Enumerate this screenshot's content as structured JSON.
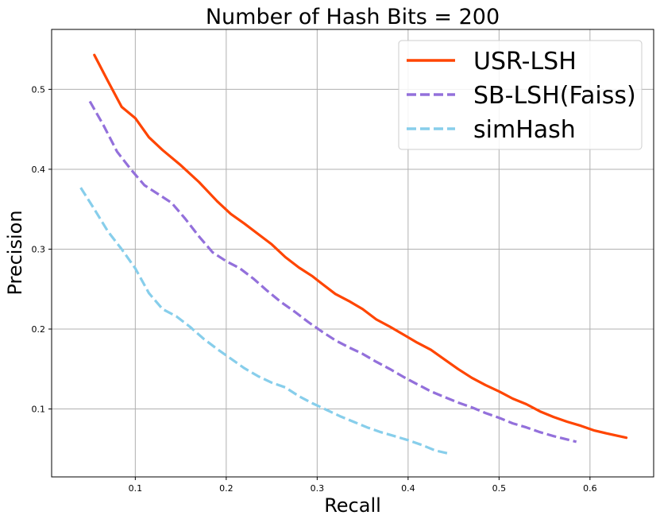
{
  "chart_data": {
    "type": "line",
    "title": "Number of Hash Bits = 200",
    "xlabel": "Recall",
    "ylabel": "Precision",
    "xlim": [
      0.008,
      0.67
    ],
    "ylim": [
      0.015,
      0.575
    ],
    "xticks": [
      0.1,
      0.2,
      0.3,
      0.4,
      0.5,
      0.6
    ],
    "xtick_labels": [
      "0.1",
      "0.2",
      "0.3",
      "0.4",
      "0.5",
      "0.6"
    ],
    "yticks": [
      0.1,
      0.2,
      0.3,
      0.4,
      0.5
    ],
    "ytick_labels": [
      "0.1",
      "0.2",
      "0.3",
      "0.4",
      "0.5"
    ],
    "grid": true,
    "legend_position": "top-right",
    "series": [
      {
        "name": "USR-LSH",
        "color": "#ff4500",
        "dash": "solid",
        "points": [
          [
            0.055,
            0.543
          ],
          [
            0.07,
            0.51
          ],
          [
            0.085,
            0.478
          ],
          [
            0.1,
            0.464
          ],
          [
            0.115,
            0.44
          ],
          [
            0.13,
            0.424
          ],
          [
            0.15,
            0.405
          ],
          [
            0.17,
            0.384
          ],
          [
            0.19,
            0.36
          ],
          [
            0.205,
            0.344
          ],
          [
            0.22,
            0.332
          ],
          [
            0.235,
            0.319
          ],
          [
            0.25,
            0.306
          ],
          [
            0.265,
            0.29
          ],
          [
            0.28,
            0.277
          ],
          [
            0.295,
            0.266
          ],
          [
            0.305,
            0.257
          ],
          [
            0.32,
            0.244
          ],
          [
            0.335,
            0.235
          ],
          [
            0.35,
            0.225
          ],
          [
            0.365,
            0.212
          ],
          [
            0.38,
            0.203
          ],
          [
            0.395,
            0.193
          ],
          [
            0.41,
            0.183
          ],
          [
            0.425,
            0.174
          ],
          [
            0.44,
            0.162
          ],
          [
            0.455,
            0.15
          ],
          [
            0.47,
            0.139
          ],
          [
            0.485,
            0.13
          ],
          [
            0.5,
            0.122
          ],
          [
            0.515,
            0.113
          ],
          [
            0.53,
            0.106
          ],
          [
            0.545,
            0.097
          ],
          [
            0.56,
            0.09
          ],
          [
            0.575,
            0.084
          ],
          [
            0.59,
            0.079
          ],
          [
            0.605,
            0.073
          ],
          [
            0.62,
            0.069
          ],
          [
            0.64,
            0.064
          ]
        ]
      },
      {
        "name": "SB-LSH(Faiss)",
        "color": "#9370db",
        "dash": "dashed",
        "points": [
          [
            0.05,
            0.485
          ],
          [
            0.065,
            0.455
          ],
          [
            0.08,
            0.422
          ],
          [
            0.095,
            0.4
          ],
          [
            0.11,
            0.38
          ],
          [
            0.125,
            0.369
          ],
          [
            0.14,
            0.358
          ],
          [
            0.155,
            0.338
          ],
          [
            0.17,
            0.316
          ],
          [
            0.185,
            0.296
          ],
          [
            0.2,
            0.285
          ],
          [
            0.215,
            0.276
          ],
          [
            0.23,
            0.263
          ],
          [
            0.245,
            0.248
          ],
          [
            0.26,
            0.234
          ],
          [
            0.275,
            0.222
          ],
          [
            0.29,
            0.209
          ],
          [
            0.305,
            0.197
          ],
          [
            0.32,
            0.186
          ],
          [
            0.335,
            0.177
          ],
          [
            0.35,
            0.169
          ],
          [
            0.365,
            0.159
          ],
          [
            0.38,
            0.15
          ],
          [
            0.395,
            0.14
          ],
          [
            0.41,
            0.131
          ],
          [
            0.425,
            0.122
          ],
          [
            0.44,
            0.115
          ],
          [
            0.455,
            0.108
          ],
          [
            0.47,
            0.102
          ],
          [
            0.485,
            0.095
          ],
          [
            0.5,
            0.089
          ],
          [
            0.515,
            0.082
          ],
          [
            0.53,
            0.077
          ],
          [
            0.545,
            0.071
          ],
          [
            0.56,
            0.066
          ],
          [
            0.585,
            0.059
          ]
        ]
      },
      {
        "name": "simHash",
        "color": "#87ceeb",
        "dash": "dashed",
        "points": [
          [
            0.04,
            0.377
          ],
          [
            0.055,
            0.35
          ],
          [
            0.07,
            0.322
          ],
          [
            0.085,
            0.3
          ],
          [
            0.1,
            0.276
          ],
          [
            0.115,
            0.245
          ],
          [
            0.13,
            0.225
          ],
          [
            0.145,
            0.216
          ],
          [
            0.16,
            0.203
          ],
          [
            0.175,
            0.188
          ],
          [
            0.19,
            0.175
          ],
          [
            0.205,
            0.163
          ],
          [
            0.22,
            0.151
          ],
          [
            0.235,
            0.141
          ],
          [
            0.25,
            0.133
          ],
          [
            0.265,
            0.127
          ],
          [
            0.28,
            0.116
          ],
          [
            0.295,
            0.107
          ],
          [
            0.31,
            0.099
          ],
          [
            0.325,
            0.091
          ],
          [
            0.34,
            0.084
          ],
          [
            0.355,
            0.077
          ],
          [
            0.37,
            0.071
          ],
          [
            0.385,
            0.066
          ],
          [
            0.4,
            0.061
          ],
          [
            0.415,
            0.055
          ],
          [
            0.43,
            0.048
          ],
          [
            0.445,
            0.044
          ]
        ]
      }
    ]
  }
}
